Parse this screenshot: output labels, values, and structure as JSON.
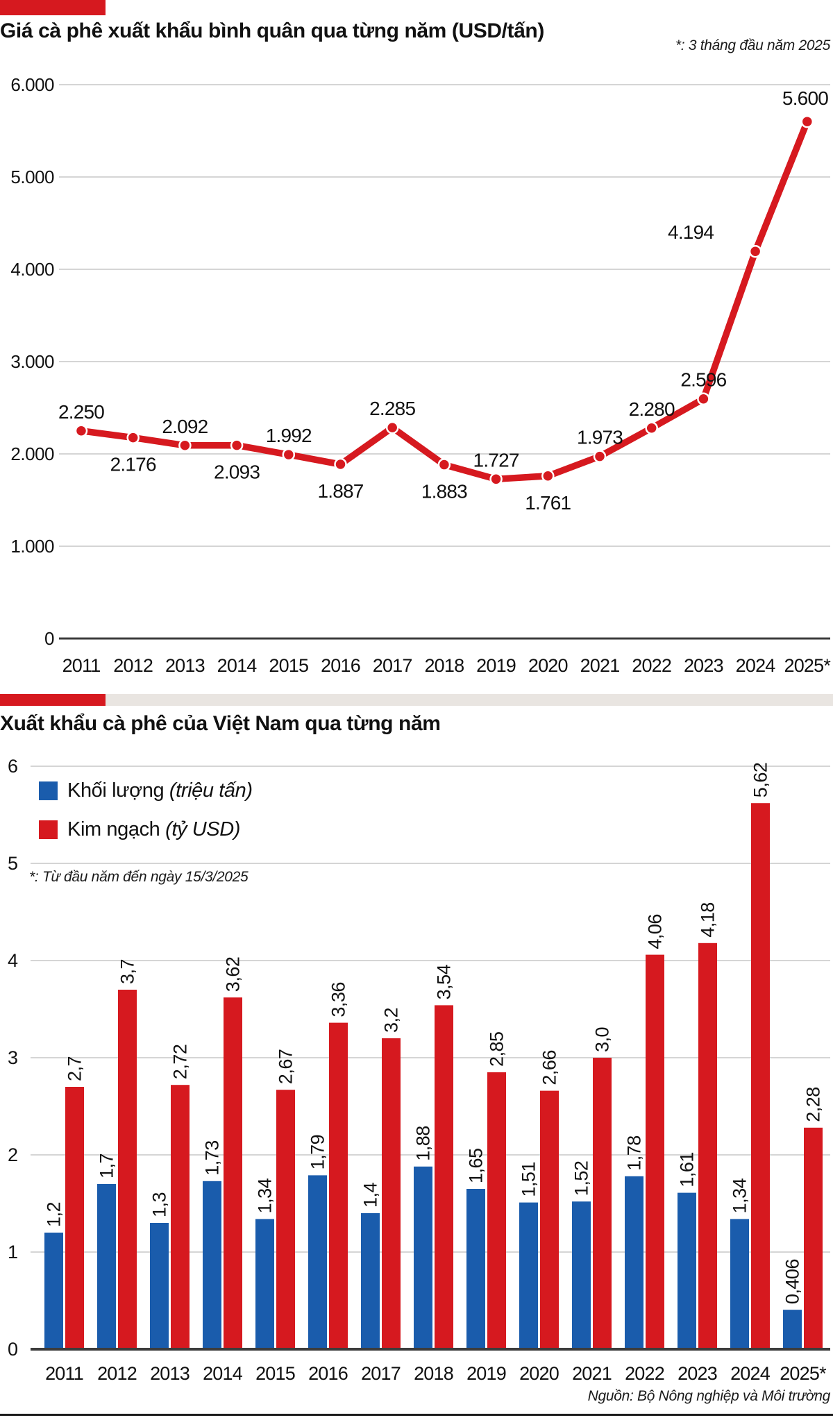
{
  "colors": {
    "accent_red": "#d6191f",
    "volume_blue": "#1a5cac",
    "grid_light": "#c7c7c7",
    "axis_dark": "#3c3c3c",
    "separator_band": "#e9e5e1",
    "text": "#111111"
  },
  "chart_data": [
    {
      "type": "line",
      "title": "Giá cà phê xuất khẩu bình quân qua từng năm (USD/tấn)",
      "note": "*: 3 tháng đầu năm 2025",
      "categories": [
        "2011",
        "2012",
        "2013",
        "2014",
        "2015",
        "2016",
        "2017",
        "2018",
        "2019",
        "2020",
        "2021",
        "2022",
        "2023",
        "2024",
        "2025*"
      ],
      "values": [
        2250,
        2176,
        2092,
        2093,
        1992,
        1887,
        2285,
        1883,
        1727,
        1761,
        1973,
        2280,
        2596,
        4194,
        5600
      ],
      "value_labels": [
        "2.250",
        "2.176",
        "2.092",
        "2.093",
        "1.992",
        "1.887",
        "2.285",
        "1.883",
        "1.727",
        "1.761",
        "1.973",
        "2.280",
        "2.596",
        "4.194",
        "5.600"
      ],
      "ylim": [
        0,
        6000
      ],
      "ytick_labels": [
        "0",
        "1.000",
        "2.000",
        "3.000",
        "4.000",
        "5.000",
        "6.000"
      ],
      "grid": true,
      "legend_position": "none",
      "line_color": "#d6191f"
    },
    {
      "type": "bar",
      "title": "Xuất khẩu cà phê của Việt Nam qua từng năm",
      "note": "*: Từ đầu năm đến ngày 15/3/2025",
      "source": "Nguồn: Bộ Nông nghiệp và Môi trường",
      "categories": [
        "2011",
        "2012",
        "2013",
        "2014",
        "2015",
        "2016",
        "2017",
        "2018",
        "2019",
        "2020",
        "2021",
        "2022",
        "2023",
        "2024",
        "2025*"
      ],
      "series": [
        {
          "name": "Khối lượng",
          "unit": "(triệu tấn)",
          "color": "#1a5cac",
          "values": [
            1.2,
            1.7,
            1.3,
            1.73,
            1.34,
            1.79,
            1.4,
            1.88,
            1.65,
            1.51,
            1.52,
            1.78,
            1.61,
            1.34,
            0.406
          ],
          "value_labels": [
            "1,2",
            "1,7",
            "1,3",
            "1,73",
            "1,34",
            "1,79",
            "1,4",
            "1,88",
            "1,65",
            "1,51",
            "1,52",
            "1,78",
            "1,61",
            "1,34",
            "0,406"
          ]
        },
        {
          "name": "Kim ngạch",
          "unit": "(tỷ USD)",
          "color": "#d6191f",
          "values": [
            2.7,
            3.7,
            2.72,
            3.62,
            2.67,
            3.36,
            3.2,
            3.54,
            2.85,
            2.66,
            3.0,
            4.06,
            4.18,
            5.62,
            2.28
          ],
          "value_labels": [
            "2,7",
            "3,7",
            "2,72",
            "3,62",
            "2,67",
            "3,36",
            "3,2",
            "3,54",
            "2,85",
            "2,66",
            "3,0",
            "4,06",
            "4,18",
            "5,62",
            "2,28"
          ]
        }
      ],
      "ylim": [
        0,
        6
      ],
      "ytick_labels": [
        "0",
        "1",
        "2",
        "3",
        "4",
        "5",
        "6"
      ],
      "grid": true,
      "legend_position": "top-left"
    }
  ]
}
